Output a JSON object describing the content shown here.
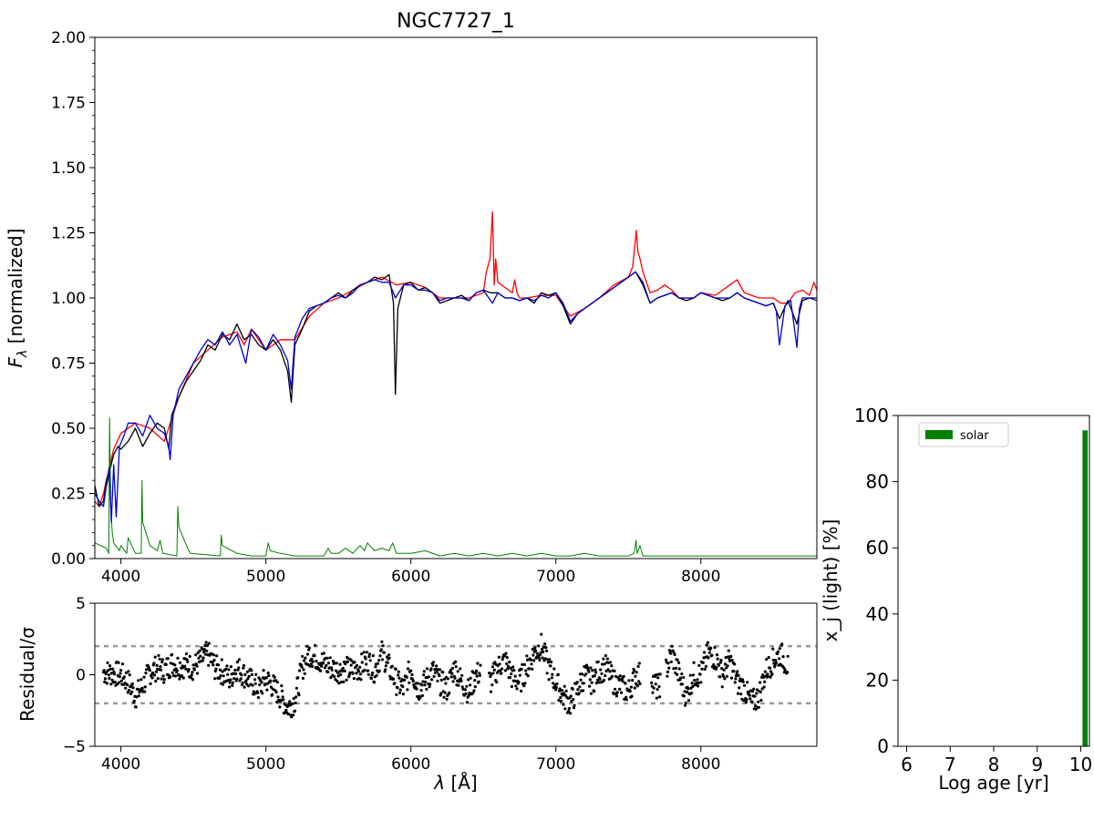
{
  "colors": {
    "observed": "#000000",
    "model": "#ff0000",
    "fit": "#0000cc",
    "weights": "#008000",
    "residual_points": "#000000",
    "sigma_lines": "#999999",
    "bar": "#008000"
  },
  "chart_data": [
    {
      "type": "line",
      "title": "NGC7727_1",
      "xlabel": "",
      "ylabel": "F_λ [normalized]",
      "ylabel_main": "F",
      "ylabel_sub": "λ",
      "ylabel_rest": " [normalized]",
      "xlim": [
        3820,
        8800
      ],
      "ylim": [
        0,
        2
      ],
      "xticks": [
        "4000",
        "5000",
        "6000",
        "7000",
        "8000"
      ],
      "yticks": [
        "0.00",
        "0.25",
        "0.50",
        "0.75",
        "1.00",
        "1.25",
        "1.50",
        "1.75",
        "2.00"
      ],
      "grid": false,
      "series": [
        {
          "key": "observed",
          "x": [
            3820,
            3850,
            3880,
            3900,
            3920,
            3950,
            3980,
            4000,
            4050,
            4100,
            4150,
            4200,
            4250,
            4300,
            4330,
            4350,
            4400,
            4450,
            4500,
            4550,
            4600,
            4650,
            4700,
            4750,
            4800,
            4850,
            4900,
            4950,
            5000,
            5050,
            5100,
            5150,
            5175,
            5200,
            5250,
            5300,
            5350,
            5400,
            5450,
            5500,
            5550,
            5600,
            5650,
            5700,
            5750,
            5800,
            5850,
            5880,
            5893,
            5910,
            5950,
            6000,
            6050,
            6100,
            6150,
            6200,
            6250,
            6300,
            6350,
            6400,
            6450,
            6500,
            6550,
            6600,
            6650,
            6700,
            6750,
            6800,
            6850,
            6900,
            6950,
            7000,
            7050,
            7100,
            7150,
            7200,
            7250,
            7300,
            7350,
            7400,
            7450,
            7500,
            7550,
            7600,
            7650,
            7700,
            7750,
            7800,
            7850,
            7900,
            7950,
            8000,
            8050,
            8100,
            8150,
            8200,
            8250,
            8300,
            8350,
            8400,
            8450,
            8500,
            8542,
            8600,
            8662,
            8700,
            8750,
            8800
          ],
          "y": [
            0.28,
            0.2,
            0.22,
            0.3,
            0.33,
            0.4,
            0.43,
            0.42,
            0.45,
            0.5,
            0.43,
            0.48,
            0.52,
            0.5,
            0.42,
            0.55,
            0.62,
            0.68,
            0.72,
            0.76,
            0.82,
            0.8,
            0.86,
            0.84,
            0.9,
            0.84,
            0.86,
            0.82,
            0.8,
            0.84,
            0.8,
            0.72,
            0.6,
            0.82,
            0.88,
            0.95,
            0.97,
            0.98,
            1.0,
            1.02,
            1.0,
            1.03,
            1.05,
            1.06,
            1.08,
            1.07,
            1.09,
            0.98,
            0.63,
            0.96,
            1.05,
            1.06,
            1.03,
            1.04,
            1.02,
            0.98,
            0.99,
            1.0,
            1.01,
            0.99,
            1.02,
            1.03,
            1.02,
            1.02,
            1.0,
            1.0,
            0.99,
            1.0,
            0.98,
            1.02,
            1.01,
            1.02,
            0.97,
            0.9,
            0.94,
            0.96,
            0.98,
            1.0,
            1.02,
            1.04,
            1.06,
            1.08,
            1.1,
            1.05,
            0.98,
            1.0,
            1.01,
            1.02,
            1.0,
            0.99,
            1.0,
            1.02,
            1.01,
            1.0,
            0.99,
            1.0,
            1.02,
            1.0,
            0.99,
            0.98,
            0.97,
            0.98,
            0.92,
            0.99,
            0.9,
            0.99,
            1.0,
            1.0
          ]
        },
        {
          "key": "model",
          "x": [
            3820,
            3850,
            3880,
            3920,
            3950,
            4000,
            4100,
            4200,
            4300,
            4400,
            4500,
            4600,
            4700,
            4800,
            4850,
            4900,
            4950,
            5000,
            5100,
            5200,
            5300,
            5400,
            5500,
            5600,
            5700,
            5800,
            5900,
            6000,
            6100,
            6200,
            6300,
            6400,
            6500,
            6520,
            6545,
            6563,
            6575,
            6585,
            6600,
            6650,
            6700,
            6716,
            6731,
            6750,
            6800,
            6900,
            7000,
            7100,
            7200,
            7300,
            7400,
            7500,
            7530,
            7555,
            7565,
            7580,
            7600,
            7650,
            7700,
            7750,
            7800,
            7850,
            7900,
            7950,
            8000,
            8100,
            8200,
            8250,
            8300,
            8350,
            8400,
            8450,
            8500,
            8550,
            8600,
            8650,
            8700,
            8750,
            8780,
            8800
          ],
          "y": [
            0.22,
            0.2,
            0.25,
            0.35,
            0.42,
            0.48,
            0.52,
            0.5,
            0.45,
            0.62,
            0.75,
            0.8,
            0.85,
            0.87,
            0.82,
            0.88,
            0.84,
            0.8,
            0.84,
            0.84,
            0.93,
            0.98,
            1.0,
            1.03,
            1.06,
            1.08,
            1.05,
            1.06,
            1.04,
            1.0,
            1.0,
            1.0,
            1.02,
            1.1,
            1.15,
            1.33,
            1.05,
            1.15,
            1.06,
            1.04,
            1.02,
            1.07,
            1.02,
            1.0,
            1.0,
            1.01,
            1.01,
            0.93,
            0.96,
            1.0,
            1.05,
            1.08,
            1.12,
            1.26,
            1.18,
            1.15,
            1.1,
            1.02,
            1.03,
            1.05,
            1.03,
            1.0,
            1.0,
            1.0,
            1.02,
            1.01,
            1.05,
            1.07,
            1.02,
            1.01,
            1.0,
            1.0,
            1.0,
            0.98,
            0.98,
            1.02,
            1.03,
            1.01,
            1.06,
            1.03
          ]
        },
        {
          "key": "fit",
          "x": [
            3820,
            3850,
            3880,
            3900,
            3910,
            3920,
            3934,
            3950,
            3968,
            3990,
            4020,
            4050,
            4100,
            4150,
            4200,
            4250,
            4300,
            4330,
            4340,
            4360,
            4400,
            4450,
            4500,
            4550,
            4600,
            4650,
            4700,
            4750,
            4800,
            4861,
            4900,
            4950,
            5000,
            5050,
            5100,
            5150,
            5175,
            5200,
            5250,
            5300,
            5350,
            5400,
            5450,
            5500,
            5550,
            5600,
            5650,
            5700,
            5750,
            5800,
            5850,
            5893,
            5950,
            6000,
            6050,
            6100,
            6150,
            6200,
            6250,
            6300,
            6350,
            6400,
            6450,
            6500,
            6563,
            6600,
            6650,
            6700,
            6750,
            6800,
            6850,
            6900,
            6950,
            7000,
            7050,
            7100,
            7150,
            7200,
            7250,
            7300,
            7350,
            7400,
            7450,
            7500,
            7550,
            7600,
            7650,
            7700,
            7750,
            7800,
            7850,
            7900,
            7950,
            8000,
            8050,
            8100,
            8150,
            8200,
            8250,
            8300,
            8350,
            8400,
            8450,
            8498,
            8520,
            8542,
            8580,
            8620,
            8662,
            8680,
            8700,
            8750,
            8800
          ],
          "y": [
            0.25,
            0.22,
            0.2,
            0.28,
            0.3,
            0.35,
            0.14,
            0.36,
            0.16,
            0.43,
            0.47,
            0.52,
            0.52,
            0.47,
            0.55,
            0.5,
            0.48,
            0.43,
            0.38,
            0.55,
            0.65,
            0.7,
            0.75,
            0.8,
            0.84,
            0.82,
            0.87,
            0.82,
            0.86,
            0.75,
            0.88,
            0.85,
            0.8,
            0.86,
            0.82,
            0.76,
            0.65,
            0.85,
            0.92,
            0.96,
            0.97,
            0.98,
            1.0,
            1.01,
            1.0,
            1.02,
            1.05,
            1.06,
            1.07,
            1.06,
            1.06,
            1.0,
            1.05,
            1.05,
            1.03,
            1.03,
            1.02,
            0.99,
            1.0,
            1.0,
            1.0,
            0.99,
            1.02,
            1.03,
            0.98,
            1.02,
            1.0,
            1.0,
            0.99,
            1.0,
            0.99,
            1.01,
            1.0,
            1.02,
            0.98,
            0.91,
            0.94,
            0.96,
            0.98,
            1.0,
            1.02,
            1.04,
            1.06,
            1.08,
            1.1,
            1.06,
            0.98,
            1.0,
            1.01,
            1.02,
            1.0,
            1.0,
            1.0,
            1.02,
            1.01,
            1.0,
            1.0,
            1.0,
            1.02,
            1.0,
            0.99,
            0.98,
            0.97,
            0.98,
            0.95,
            0.82,
            0.97,
            0.99,
            0.81,
            0.96,
            1.0,
            1.0,
            0.99
          ]
        },
        {
          "key": "weights",
          "x": [
            3820,
            3900,
            3916,
            3922,
            3930,
            3940,
            3950,
            3990,
            4000,
            4040,
            4050,
            4100,
            4140,
            4146,
            4150,
            4200,
            4250,
            4270,
            4290,
            4386,
            4392,
            4400,
            4460,
            4480,
            4686,
            4692,
            4700,
            4800,
            4900,
            5000,
            5016,
            5030,
            5100,
            5200,
            5300,
            5400,
            5430,
            5450,
            5500,
            5550,
            5600,
            5650,
            5680,
            5700,
            5750,
            5800,
            5850,
            5875,
            5900,
            6000,
            6100,
            6200,
            6300,
            6400,
            6500,
            6600,
            6700,
            6800,
            6900,
            7000,
            7100,
            7200,
            7300,
            7400,
            7500,
            7540,
            7553,
            7560,
            7580,
            7600,
            7700,
            7800,
            7900,
            8000,
            8100,
            8200,
            8300,
            8400,
            8500,
            8600,
            8700,
            8800
          ],
          "y": [
            0.06,
            0.04,
            0.02,
            0.54,
            0.2,
            0.1,
            0.06,
            0.03,
            0.05,
            0.02,
            0.08,
            0.02,
            0.02,
            0.3,
            0.14,
            0.05,
            0.03,
            0.07,
            0.02,
            0.01,
            0.2,
            0.12,
            0.04,
            0.02,
            0.01,
            0.09,
            0.05,
            0.02,
            0.01,
            0.01,
            0.06,
            0.03,
            0.02,
            0.01,
            0.01,
            0.01,
            0.04,
            0.02,
            0.02,
            0.04,
            0.02,
            0.05,
            0.03,
            0.06,
            0.03,
            0.04,
            0.03,
            0.06,
            0.02,
            0.02,
            0.03,
            0.01,
            0.02,
            0.01,
            0.02,
            0.01,
            0.02,
            0.01,
            0.02,
            0.01,
            0.01,
            0.02,
            0.01,
            0.01,
            0.01,
            0.02,
            0.07,
            0.02,
            0.05,
            0.01,
            0.01,
            0.01,
            0.01,
            0.01,
            0.01,
            0.01,
            0.01,
            0.01,
            0.01,
            0.01,
            0.01,
            0.01
          ]
        }
      ]
    },
    {
      "type": "scatter",
      "title": "",
      "xlabel": "λ [Å]",
      "xlabel_main": "λ",
      "xlabel_rest": " [Å]",
      "ylabel": "Residual/σ",
      "xlim": [
        3820,
        8800
      ],
      "ylim": [
        -5,
        5
      ],
      "xticks": [
        "4000",
        "5000",
        "6000",
        "7000",
        "8000"
      ],
      "yticks": [
        "−5",
        "0",
        "5"
      ],
      "reference_lines": [
        2,
        -2
      ],
      "grid": false,
      "envelope": {
        "x": [
          3880,
          3940,
          4000,
          4050,
          4100,
          4150,
          4200,
          4250,
          4300,
          4350,
          4400,
          4450,
          4500,
          4550,
          4600,
          4650,
          4700,
          4750,
          4800,
          4850,
          4900,
          4950,
          5000,
          5050,
          5100,
          5150,
          5200,
          5250,
          5300,
          5350,
          5400,
          5450,
          5500,
          5550,
          5600,
          5650,
          5700,
          5750,
          5800,
          5850,
          5900,
          5950,
          6000,
          6050,
          6100,
          6150,
          6200,
          6250,
          6300,
          6350,
          6400,
          6450,
          6500,
          6550,
          6600,
          6650,
          6700,
          6750,
          6800,
          6850,
          6900,
          6950,
          7000,
          7050,
          7100,
          7150,
          7200,
          7250,
          7300,
          7350,
          7400,
          7450,
          7500,
          7550,
          7600,
          7650,
          7700,
          7750,
          7800,
          7850,
          7900,
          7950,
          8000,
          8050,
          8100,
          8150,
          8200,
          8250,
          8300,
          8350,
          8400,
          8450,
          8500,
          8550,
          8600
        ],
        "trend": [
          0.2,
          0.1,
          0.0,
          -0.5,
          -1.5,
          -0.8,
          0.2,
          0.5,
          0.3,
          0.8,
          0.6,
          0.7,
          0.5,
          1.0,
          1.5,
          0.5,
          0.2,
          -0.3,
          0.5,
          0.0,
          -0.5,
          -1.0,
          -0.3,
          -0.8,
          -1.5,
          -2.3,
          -1.8,
          0.5,
          1.5,
          1.2,
          0.8,
          0.5,
          0.3,
          0.4,
          0.3,
          0.5,
          1.0,
          0.3,
          1.5,
          0.5,
          -0.5,
          -1.0,
          0.5,
          -1.0,
          -0.5,
          0.3,
          -0.5,
          -1.0,
          0.5,
          -0.5,
          -1.2,
          0.0,
          0.2,
          -0.5,
          0.5,
          1.0,
          -0.2,
          -0.5,
          0.5,
          1.5,
          2.0,
          0.5,
          -0.5,
          -1.5,
          -2.0,
          -1.0,
          0.0,
          -0.5,
          0.3,
          0.5,
          -0.5,
          -0.8,
          -1.2,
          0.0,
          0.0,
          0.0,
          -1.0,
          0.0,
          1.5,
          0.0,
          -1.5,
          0.0,
          0.0,
          1.5,
          1.2,
          0.0,
          1.0,
          -0.5,
          -1.0,
          -2.0,
          -1.5,
          0.3,
          1.0,
          1.5,
          0.5
        ],
        "spread": 0.9
      }
    },
    {
      "type": "bar",
      "title": "",
      "xlabel": "Log age [yr]",
      "ylabel": "x_j (light) [%]",
      "xlim": [
        5.8,
        10.2
      ],
      "ylim": [
        0,
        100
      ],
      "xticks": [
        "6",
        "7",
        "8",
        "9",
        "10"
      ],
      "yticks": [
        "0",
        "20",
        "40",
        "60",
        "80",
        "100"
      ],
      "legend_position": "top-left",
      "grid": false,
      "series": [
        {
          "name": "solar",
          "x": [
            10.1
          ],
          "values": [
            95.5
          ],
          "width": 0.12
        }
      ]
    }
  ]
}
